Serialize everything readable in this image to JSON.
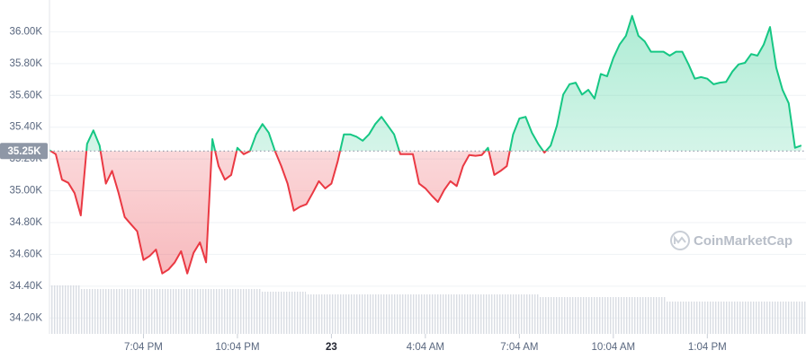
{
  "chart_data": {
    "type": "line",
    "x": [
      0,
      0.2,
      0.4,
      0.6,
      0.8,
      1,
      1.2,
      1.4,
      1.6,
      1.8,
      2,
      2.2,
      2.4,
      2.6,
      2.8,
      3,
      3.2,
      3.4,
      3.6,
      3.8,
      4,
      4.2,
      4.4,
      4.6,
      4.8,
      5,
      5.2,
      5.4,
      5.6,
      5.8,
      6,
      6.2,
      6.4,
      6.6,
      6.8,
      7,
      7.2,
      7.4,
      7.6,
      7.8,
      8,
      8.2,
      8.4,
      8.6,
      8.8,
      9,
      9.2,
      9.4,
      9.6,
      9.8,
      10,
      10.2,
      10.4,
      10.6,
      10.8,
      11,
      11.2,
      11.4,
      11.6,
      11.8,
      12,
      12.2,
      12.4,
      12.6,
      12.8,
      13,
      13.2,
      13.4,
      13.6,
      13.8,
      14,
      14.2,
      14.4,
      14.6,
      14.8,
      15,
      15.2,
      15.4,
      15.6,
      15.8,
      16,
      16.2,
      16.4,
      16.6,
      16.8,
      17,
      17.2,
      17.4,
      17.6,
      17.8,
      18,
      18.2,
      18.4,
      18.6,
      18.8,
      19,
      19.2,
      19.4,
      19.6,
      19.8,
      20,
      20.2,
      20.4,
      20.6,
      20.8,
      21,
      21.2,
      21.4,
      21.6,
      21.8,
      22,
      22.2,
      22.4,
      22.6,
      22.8,
      23,
      23.2,
      23.4,
      23.6,
      23.8,
      24
    ],
    "values": [
      35255,
      35230,
      35070,
      35050,
      34985,
      34845,
      35295,
      35380,
      35285,
      35045,
      35125,
      34990,
      34835,
      34790,
      34745,
      34565,
      34590,
      34630,
      34480,
      34505,
      34550,
      34620,
      34480,
      34610,
      34675,
      34550,
      35325,
      35155,
      35070,
      35100,
      35270,
      35230,
      35250,
      35355,
      35420,
      35365,
      35250,
      35155,
      35045,
      34875,
      34900,
      34915,
      34985,
      35060,
      35015,
      35045,
      35185,
      35355,
      35355,
      35340,
      35315,
      35355,
      35420,
      35465,
      35410,
      35355,
      35230,
      35230,
      35230,
      35045,
      35015,
      34970,
      34930,
      35005,
      35060,
      35030,
      35155,
      35225,
      35220,
      35225,
      35270,
      35100,
      35125,
      35155,
      35355,
      35455,
      35465,
      35365,
      35295,
      35240,
      35285,
      35410,
      35605,
      35670,
      35680,
      35605,
      35635,
      35580,
      35735,
      35720,
      35835,
      35920,
      35975,
      36100,
      35975,
      35940,
      35875,
      35875,
      35875,
      35850,
      35875,
      35875,
      35795,
      35705,
      35715,
      35705,
      35670,
      35680,
      35685,
      35750,
      35795,
      35805,
      35860,
      35850,
      35920,
      36030,
      35775,
      35635,
      35550,
      35270,
      35285
    ],
    "baseline": {
      "value": 35250,
      "label": "35.25K"
    },
    "colors": {
      "above": "#16c784",
      "below": "#ea3943"
    },
    "xlim": [
      0,
      24.15
    ],
    "xticks": [
      {
        "value": 3,
        "label": "7:04 PM"
      },
      {
        "value": 6,
        "label": "10:04 PM"
      },
      {
        "value": 9,
        "label": "23"
      },
      {
        "value": 12,
        "label": "4:04 AM"
      },
      {
        "value": 15,
        "label": "7:04 AM"
      },
      {
        "value": 18,
        "label": "10:04 AM"
      },
      {
        "value": 21,
        "label": "1:04 PM"
      }
    ],
    "ylim": [
      34100,
      36200
    ],
    "yticks": [
      {
        "value": 34200,
        "label": "34.20K"
      },
      {
        "value": 34400,
        "label": "34.40K"
      },
      {
        "value": 34600,
        "label": "34.60K"
      },
      {
        "value": 34800,
        "label": "34.80K"
      },
      {
        "value": 35000,
        "label": "35.00K"
      },
      {
        "value": 35200,
        "label": "35.20K"
      },
      {
        "value": 35400,
        "label": "35.40K"
      },
      {
        "value": 35600,
        "label": "35.60K"
      },
      {
        "value": 35800,
        "label": "35.80K"
      },
      {
        "value": 36000,
        "label": "36.00K"
      }
    ],
    "grid": true,
    "watermark": "CoinMarketCap"
  }
}
